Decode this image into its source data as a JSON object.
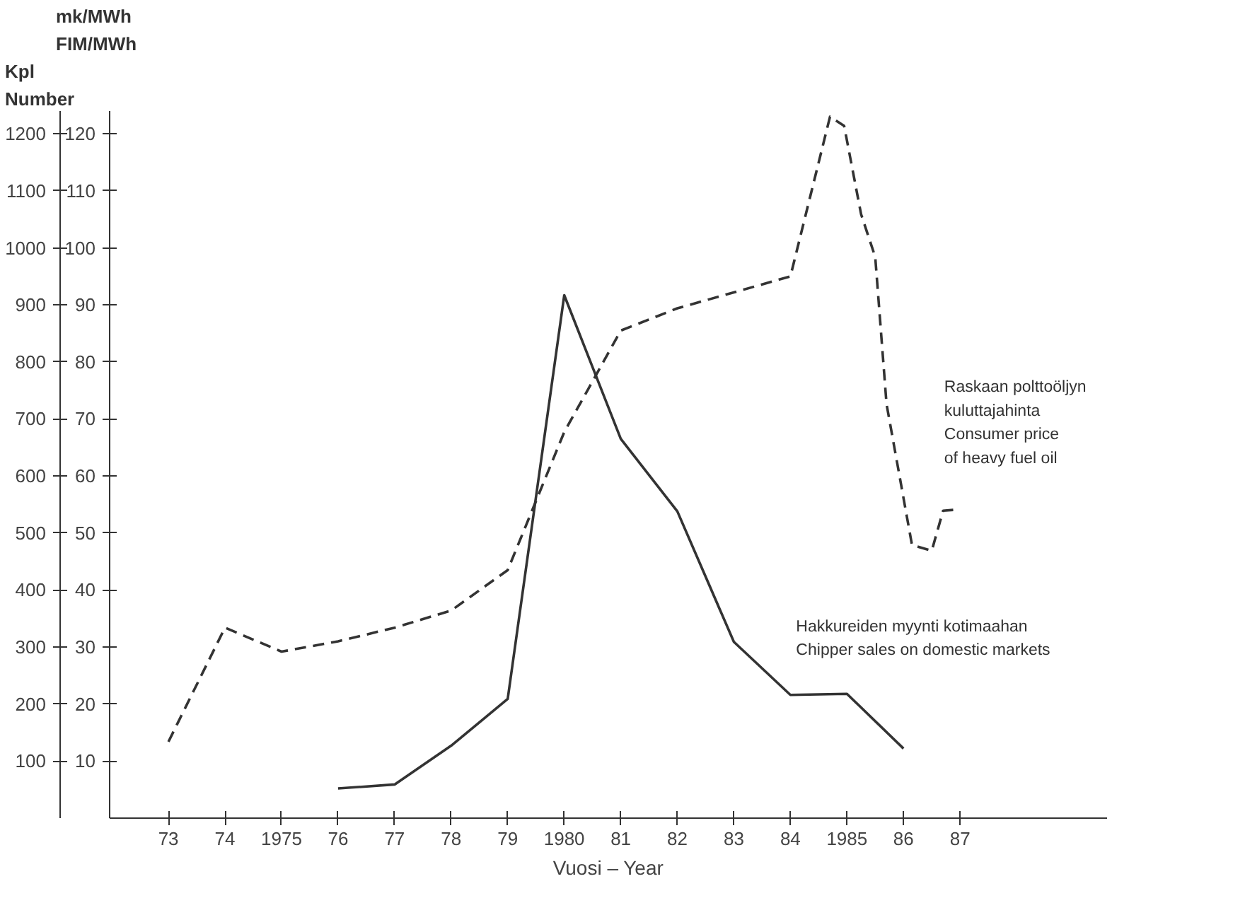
{
  "chart_data": {
    "type": "line",
    "xlabel": "Vuosi – Year",
    "ylabel": "Kpl\nNumber",
    "y2label": "mk/MWh\nFIM/MWh",
    "xlim": [
      1971.96,
      1989.6
    ],
    "ylim": [
      0,
      1240
    ],
    "y2lim": [
      0,
      124
    ],
    "xticks": [
      {
        "value": 1973,
        "label": "73"
      },
      {
        "value": 1974,
        "label": "74"
      },
      1975,
      {
        "value": 1976,
        "label": "76"
      },
      {
        "value": 1977,
        "label": "77"
      },
      {
        "value": 1978,
        "label": "78"
      },
      {
        "value": 1979,
        "label": "79"
      },
      1980,
      {
        "value": 1981,
        "label": "81"
      },
      {
        "value": 1982,
        "label": "82"
      },
      {
        "value": 1983,
        "label": "83"
      },
      {
        "value": 1984,
        "label": "84"
      },
      1985,
      {
        "value": 1986,
        "label": "86"
      },
      {
        "value": 1987,
        "label": "87"
      }
    ],
    "yticks": [
      100,
      200,
      300,
      400,
      500,
      600,
      700,
      800,
      900,
      1000,
      1100,
      1200
    ],
    "y2ticks": [
      10,
      20,
      30,
      40,
      50,
      60,
      70,
      80,
      90,
      100,
      110,
      120
    ],
    "grid": false,
    "series": [
      {
        "name": "Hakkureiden myynti kotimaahan\nChipper sales on domestic markets",
        "color": "#333333",
        "line_style": "solid",
        "x": [
          1976,
          1977,
          1978,
          1979,
          1980,
          1981,
          1982,
          1983,
          1984,
          1985,
          1986
        ],
        "values": [
          52,
          59,
          127,
          209,
          917,
          665,
          538,
          309,
          216,
          218,
          122
        ]
      },
      {
        "name": "Raskaan polttoöljyn\nkuluttajahinta\nConsumer price\nof heavy fuel oil",
        "color": "#333333",
        "line_style": "dashed",
        "axis": "y2",
        "x": [
          1973,
          1974,
          1975,
          1976,
          1977,
          1978,
          1979,
          1980,
          1981,
          1982,
          1984,
          1984.7,
          1984.95,
          1985.25,
          1985.5,
          1985.7,
          1986.15,
          1986.5,
          1986.7,
          1986.95
        ],
        "values": [
          13.4,
          33.4,
          29.2,
          31,
          33.4,
          36.4,
          43.5,
          67.7,
          85.5,
          89.4,
          95,
          123,
          121.4,
          105.9,
          98.4,
          72.6,
          47.9,
          46.9,
          53.9,
          54.1
        ]
      }
    ]
  }
}
